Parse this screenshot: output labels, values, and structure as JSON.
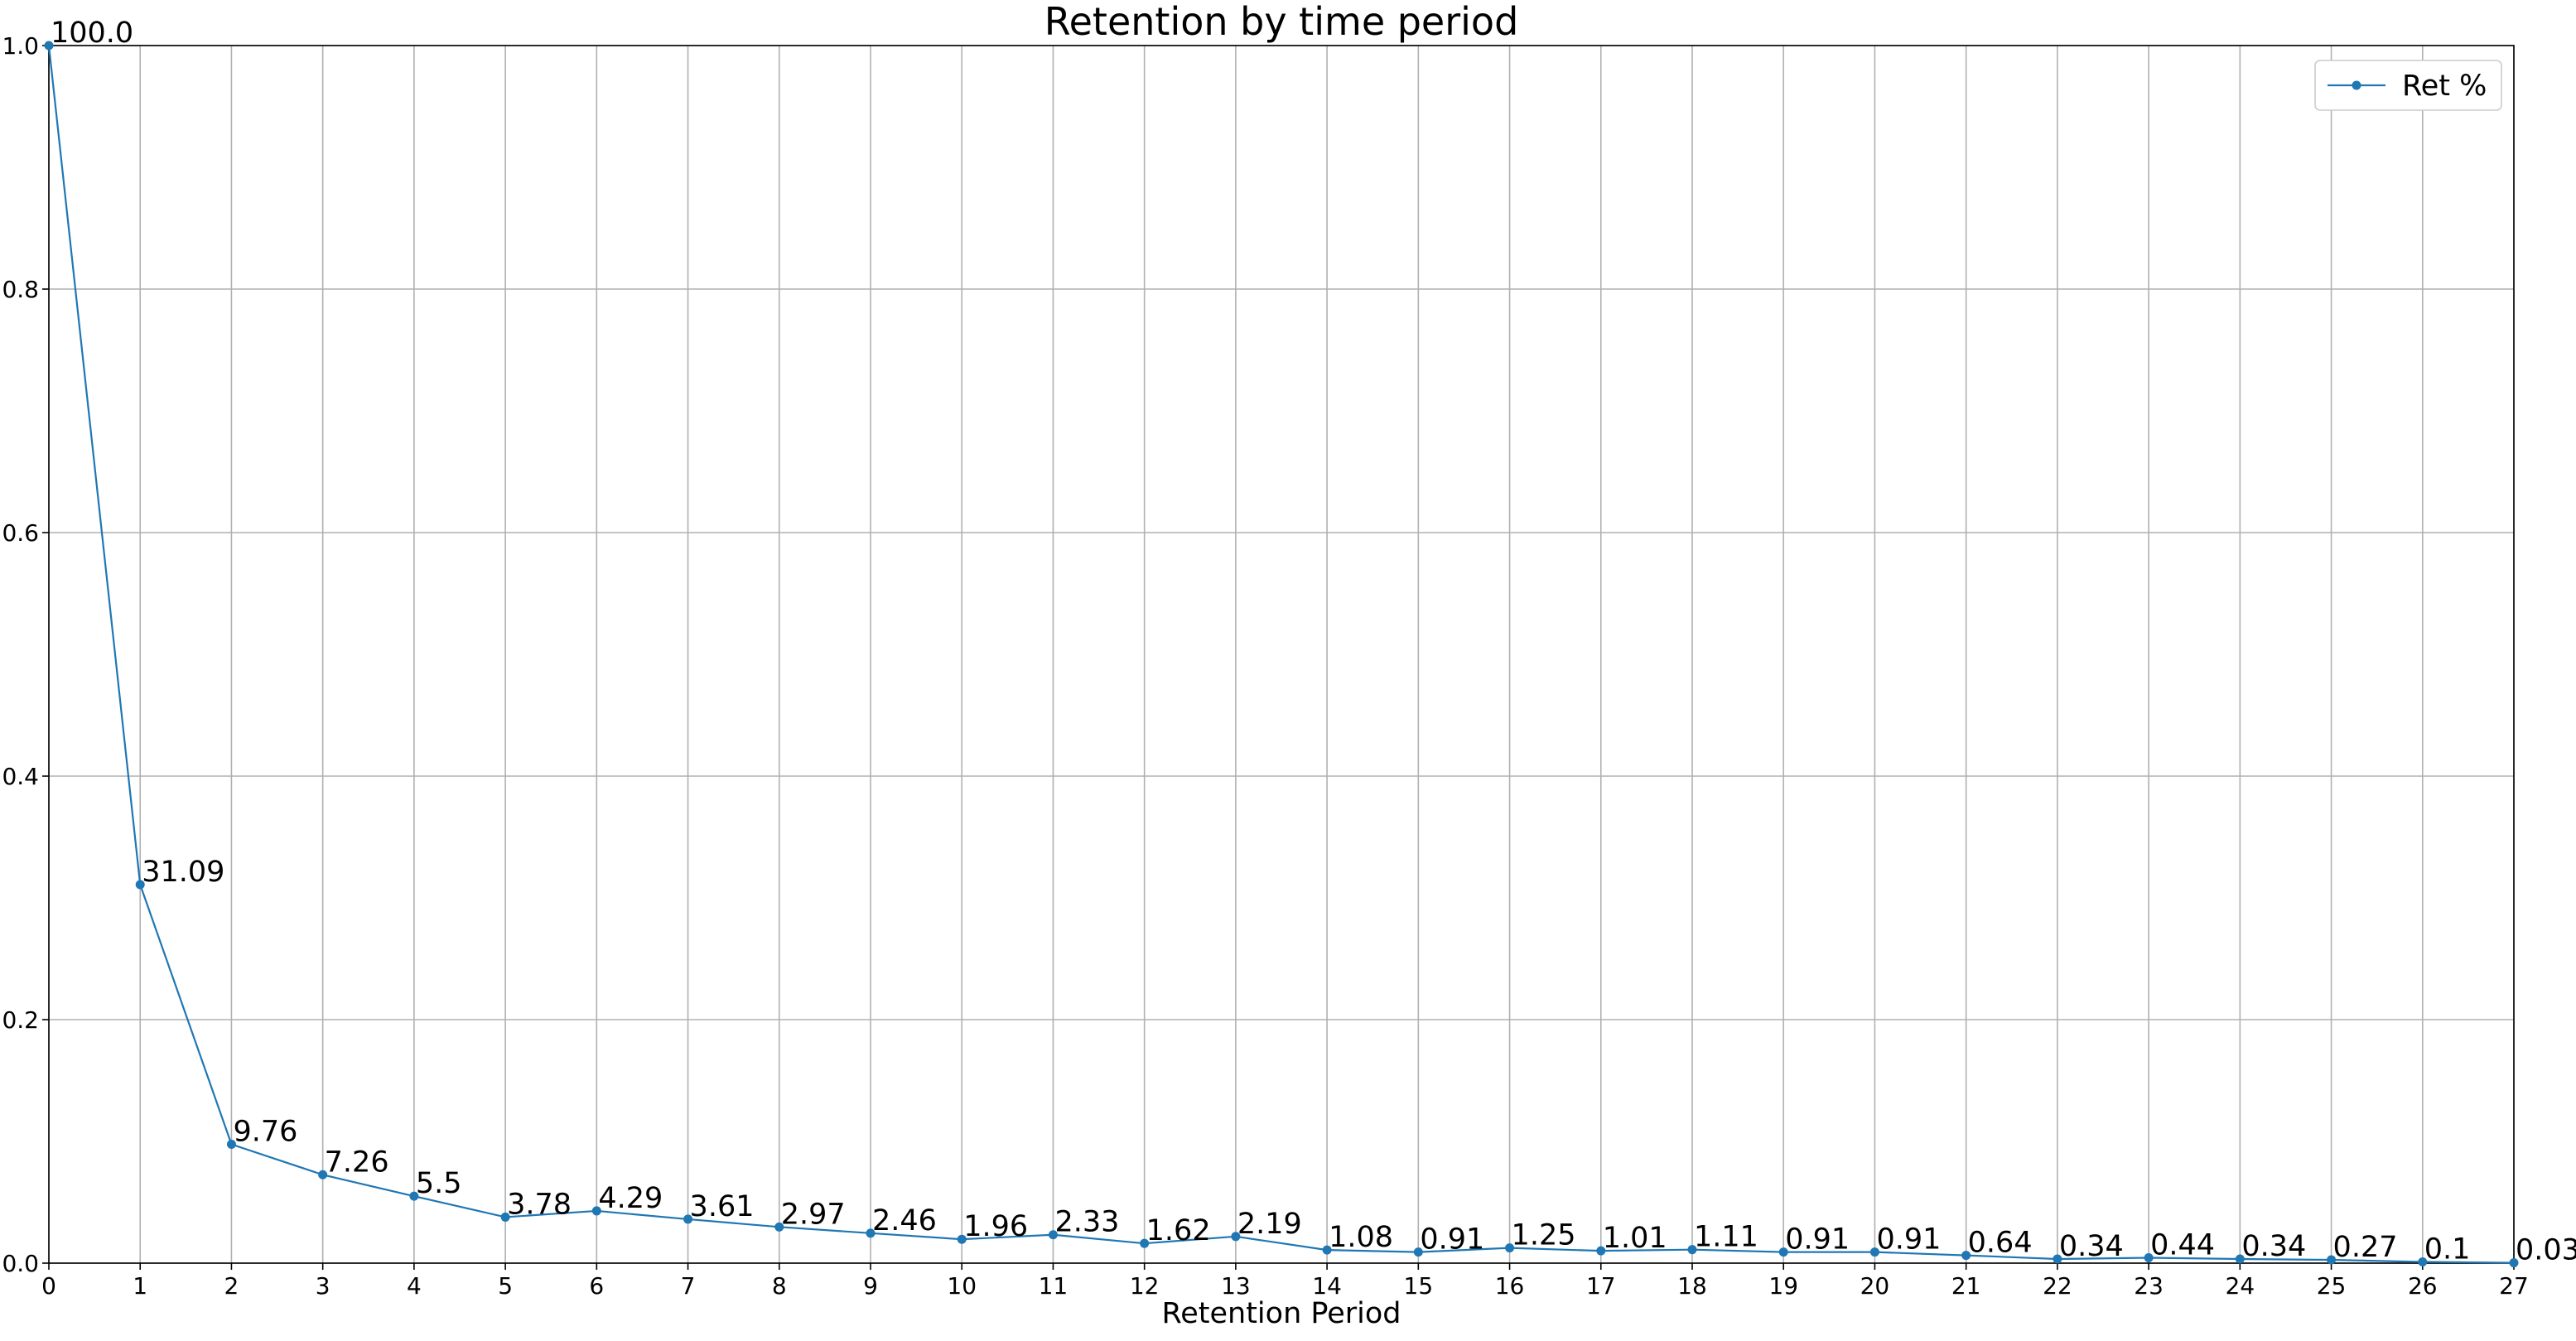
{
  "chart_data": {
    "type": "line",
    "title": "Retention by time period",
    "xlabel": "Retention Period",
    "ylabel": "",
    "xlim": [
      0,
      27
    ],
    "ylim": [
      0,
      1.0
    ],
    "x_ticks": [
      "0",
      "1",
      "2",
      "3",
      "4",
      "5",
      "6",
      "7",
      "8",
      "9",
      "10",
      "11",
      "12",
      "13",
      "14",
      "15",
      "16",
      "17",
      "18",
      "19",
      "20",
      "21",
      "22",
      "23",
      "24",
      "25",
      "26",
      "27"
    ],
    "y_ticks": [
      "0.0",
      "0.2",
      "0.4",
      "0.6",
      "0.8",
      "1.0"
    ],
    "grid": true,
    "legend_position": "top-right",
    "series": [
      {
        "name": "Ret %",
        "color": "#1f77b4",
        "marker": "circle",
        "x": [
          0,
          1,
          2,
          3,
          4,
          5,
          6,
          7,
          8,
          9,
          10,
          11,
          12,
          13,
          14,
          15,
          16,
          17,
          18,
          19,
          20,
          21,
          22,
          23,
          24,
          25,
          26,
          27
        ],
        "values": [
          1.0,
          0.3109,
          0.0976,
          0.0726,
          0.055,
          0.0378,
          0.0429,
          0.0361,
          0.0297,
          0.0246,
          0.0196,
          0.0233,
          0.0162,
          0.0219,
          0.0108,
          0.0091,
          0.0125,
          0.0101,
          0.0111,
          0.0091,
          0.0091,
          0.0064,
          0.0034,
          0.0044,
          0.0034,
          0.0027,
          0.001,
          0.0003
        ],
        "data_labels": [
          "100.0",
          "31.09",
          "9.76",
          "7.26",
          "5.5",
          "3.78",
          "4.29",
          "3.61",
          "2.97",
          "2.46",
          "1.96",
          "2.33",
          "1.62",
          "2.19",
          "1.08",
          "0.91",
          "1.25",
          "1.01",
          "1.11",
          "0.91",
          "0.91",
          "0.64",
          "0.34",
          "0.44",
          "0.34",
          "0.27",
          "0.1",
          "0.03"
        ]
      }
    ]
  }
}
